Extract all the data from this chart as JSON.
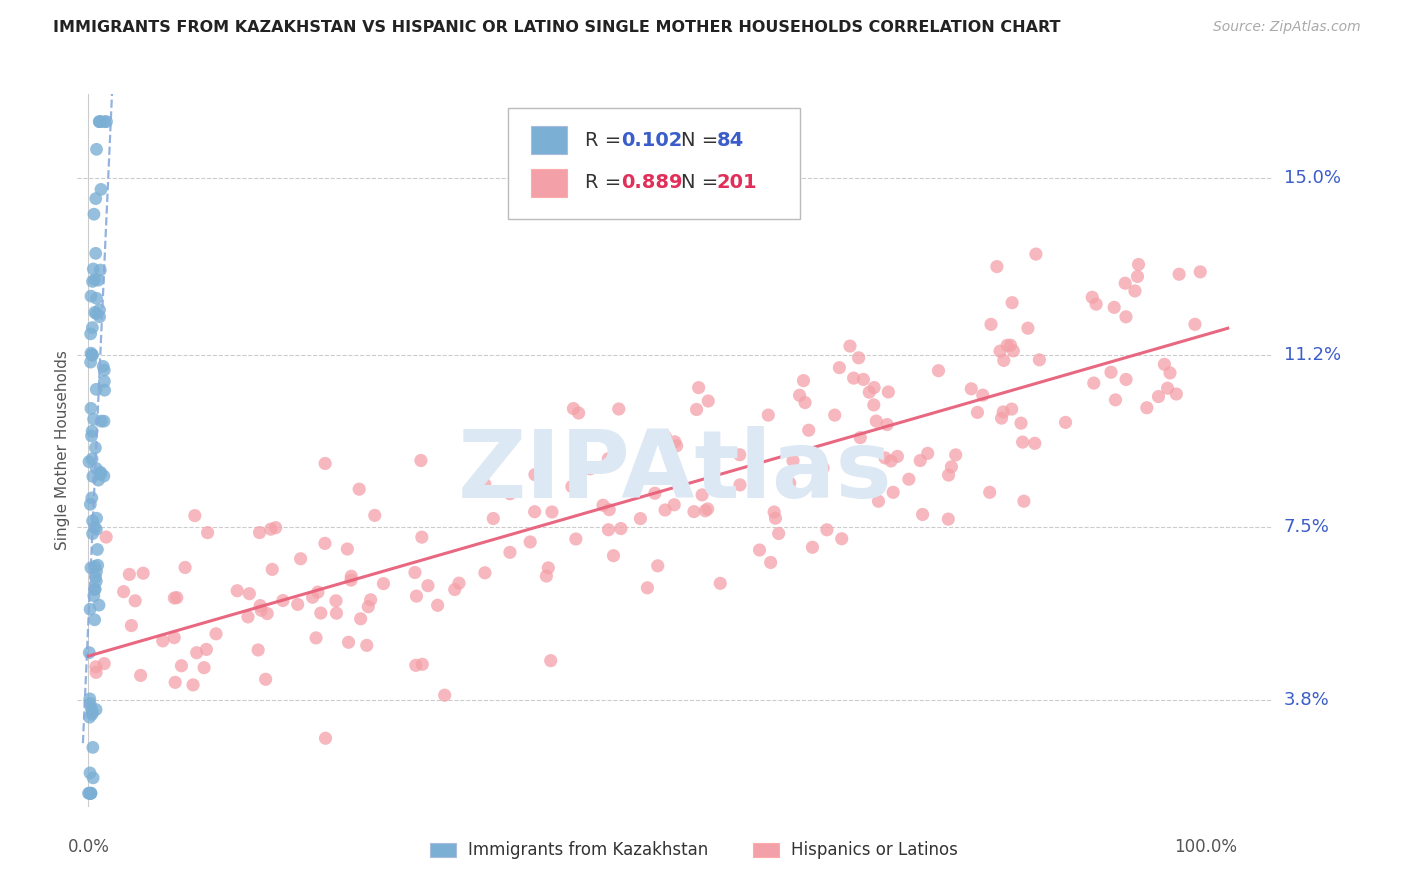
{
  "title": "IMMIGRANTS FROM KAZAKHSTAN VS HISPANIC OR LATINO SINGLE MOTHER HOUSEHOLDS CORRELATION CHART",
  "source": "Source: ZipAtlas.com",
  "ylabel": "Single Mother Households",
  "yticks": [
    0.038,
    0.075,
    0.112,
    0.15
  ],
  "ytick_labels": [
    "3.8%",
    "7.5%",
    "11.2%",
    "15.0%"
  ],
  "xlim": [
    -0.01,
    1.06
  ],
  "ylim": [
    0.015,
    0.168
  ],
  "legend_blue_R": "0.102",
  "legend_blue_N": "84",
  "legend_pink_R": "0.889",
  "legend_pink_N": "201",
  "blue_scatter_color": "#7BAFD4",
  "pink_scatter_color": "#F4A0A8",
  "blue_line_color": "#88AADD",
  "pink_line_color": "#E8607A",
  "label_color": "#3B5DC9",
  "watermark_color": "#DDE8F5",
  "N_blue": 84,
  "N_pink": 201,
  "blue_seed": 42,
  "pink_seed": 99
}
